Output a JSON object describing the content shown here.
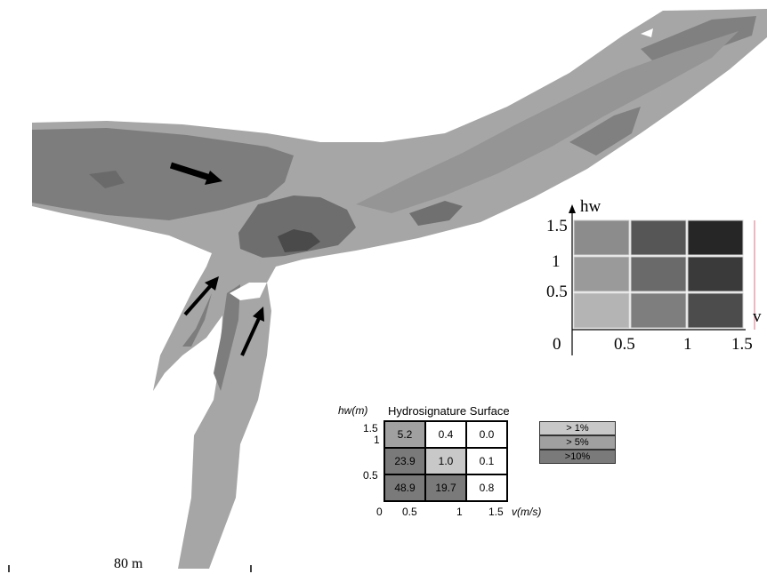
{
  "scale_bar": {
    "label": "80 m"
  },
  "class_matrix": {
    "y_axis_label": "hw",
    "x_axis_label": "v",
    "y_ticks": [
      "1.5",
      "1",
      "0.5"
    ],
    "x_ticks": [
      "0",
      "0.5",
      "1",
      "1.5"
    ],
    "shades": [
      [
        "#8c8c8c",
        "#565656",
        "#262626"
      ],
      [
        "#9a9a9a",
        "#6a6a6a",
        "#3a3a3a"
      ],
      [
        "#b4b4b4",
        "#7e7e7e",
        "#4c4c4c"
      ]
    ]
  },
  "hydrosignature": {
    "title": "Hydrosignature Surface",
    "y_axis_label": "hw(m)",
    "x_axis_label": "v(m/s)",
    "y_ticks": [
      "1.5",
      "1",
      "0.5"
    ],
    "x_ticks": [
      "0",
      "0.5",
      "1",
      "1.5"
    ],
    "rows": [
      [
        {
          "value": "5.2",
          "fill": "#a0a0a0"
        },
        {
          "value": "0.4",
          "fill": "#ffffff"
        },
        {
          "value": "0.0",
          "fill": "#ffffff"
        }
      ],
      [
        {
          "value": "23.9",
          "fill": "#7a7a7a"
        },
        {
          "value": "1.0",
          "fill": "#c8c8c8"
        },
        {
          "value": "0.1",
          "fill": "#ffffff"
        }
      ],
      [
        {
          "value": "48.9",
          "fill": "#7a7a7a"
        },
        {
          "value": "19.7",
          "fill": "#7a7a7a"
        },
        {
          "value": "0.8",
          "fill": "#ffffff"
        }
      ]
    ]
  },
  "legend": [
    {
      "label": "> 1%",
      "color": "#c8c8c8"
    },
    {
      "label": "> 5%",
      "color": "#a0a0a0"
    },
    {
      "label": ">10%",
      "color": "#7a7a7a"
    }
  ]
}
